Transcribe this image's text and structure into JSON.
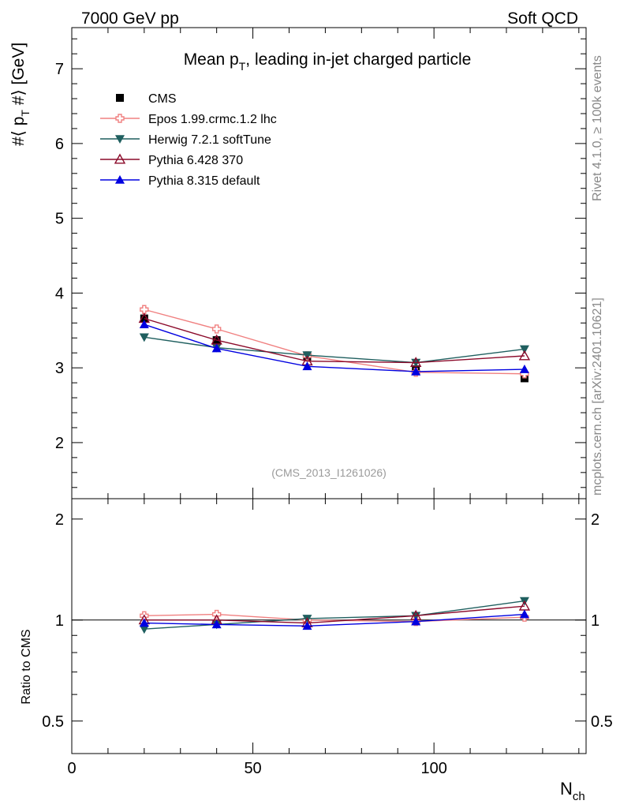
{
  "header": {
    "left": "7000 GeV pp",
    "right": "Soft QCD"
  },
  "side_labels": {
    "rivet": "Rivet 4.1.0, ≥ 100k events",
    "mcplots": "mcplots.cern.ch [arXiv:2401.10621]"
  },
  "colors": {
    "CMS": "#000000",
    "Epos": "#f08080",
    "Herwig": "#1f5f5f",
    "Pythia6": "#8b0a2a",
    "Pythia8": "#0000e0"
  },
  "chart_data": [
    {
      "type": "line",
      "panel": "main",
      "title_main": "Mean p",
      "title_sub": "T",
      "title_rest": ", leading in-jet charged particle",
      "watermark": "(CMS_2013_I1261026)",
      "ylabel_main": "#⟨ p",
      "ylabel_sub": "T",
      "ylabel_rest": " #⟩ [GeV]",
      "xlim": [
        0,
        142
      ],
      "ylim": [
        1.25,
        7.55
      ],
      "yticks": [
        2,
        3,
        4,
        5,
        6,
        7
      ],
      "legend_position": "top-left",
      "x": [
        20,
        40,
        65,
        95,
        125
      ],
      "series": [
        {
          "name": "CMS",
          "key": "CMS",
          "marker": "square",
          "line": false,
          "values": [
            3.66,
            3.37,
            3.15,
            2.98,
            2.86
          ]
        },
        {
          "name": "Epos 1.99.crmc.1.2 lhc",
          "key": "Epos",
          "marker": "cross",
          "values": [
            3.78,
            3.52,
            3.16,
            2.94,
            2.92
          ]
        },
        {
          "name": "Herwig 7.2.1 softTune",
          "key": "Herwig",
          "marker": "tri-down",
          "values": [
            3.41,
            3.27,
            3.17,
            3.07,
            3.25
          ]
        },
        {
          "name": "Pythia 6.428 370",
          "key": "Pythia6",
          "marker": "tri-up-open",
          "values": [
            3.66,
            3.37,
            3.09,
            3.07,
            3.16
          ]
        },
        {
          "name": "Pythia 8.315 default",
          "key": "Pythia8",
          "marker": "tri-up",
          "values": [
            3.58,
            3.26,
            3.02,
            2.95,
            2.98
          ]
        }
      ]
    },
    {
      "type": "line",
      "panel": "ratio",
      "ylabel": "Ratio to CMS",
      "xlabel_main": "N",
      "xlabel_sub": "ch",
      "xlim": [
        0,
        142
      ],
      "ylim": [
        0.4,
        2.3
      ],
      "yticks": [
        0.5,
        1,
        2
      ],
      "ytick_labels": [
        "0.5",
        "1",
        "2"
      ],
      "xticks": [
        0,
        50,
        100
      ],
      "xtick_labels": [
        "0",
        "50",
        "100"
      ],
      "x": [
        20,
        40,
        65,
        95,
        125
      ],
      "series": [
        {
          "name": "Epos 1.99.crmc.1.2 lhc",
          "key": "Epos",
          "marker": "cross",
          "values": [
            1.03,
            1.04,
            1.0,
            0.99,
            1.02
          ]
        },
        {
          "name": "Herwig 7.2.1 softTune",
          "key": "Herwig",
          "marker": "tri-down",
          "values": [
            0.94,
            0.97,
            1.01,
            1.03,
            1.14
          ]
        },
        {
          "name": "Pythia 6.428 370",
          "key": "Pythia6",
          "marker": "tri-up-open",
          "values": [
            1.0,
            1.0,
            0.98,
            1.03,
            1.1
          ]
        },
        {
          "name": "Pythia 8.315 default",
          "key": "Pythia8",
          "marker": "tri-up",
          "values": [
            0.98,
            0.97,
            0.96,
            0.99,
            1.04
          ]
        }
      ]
    }
  ]
}
